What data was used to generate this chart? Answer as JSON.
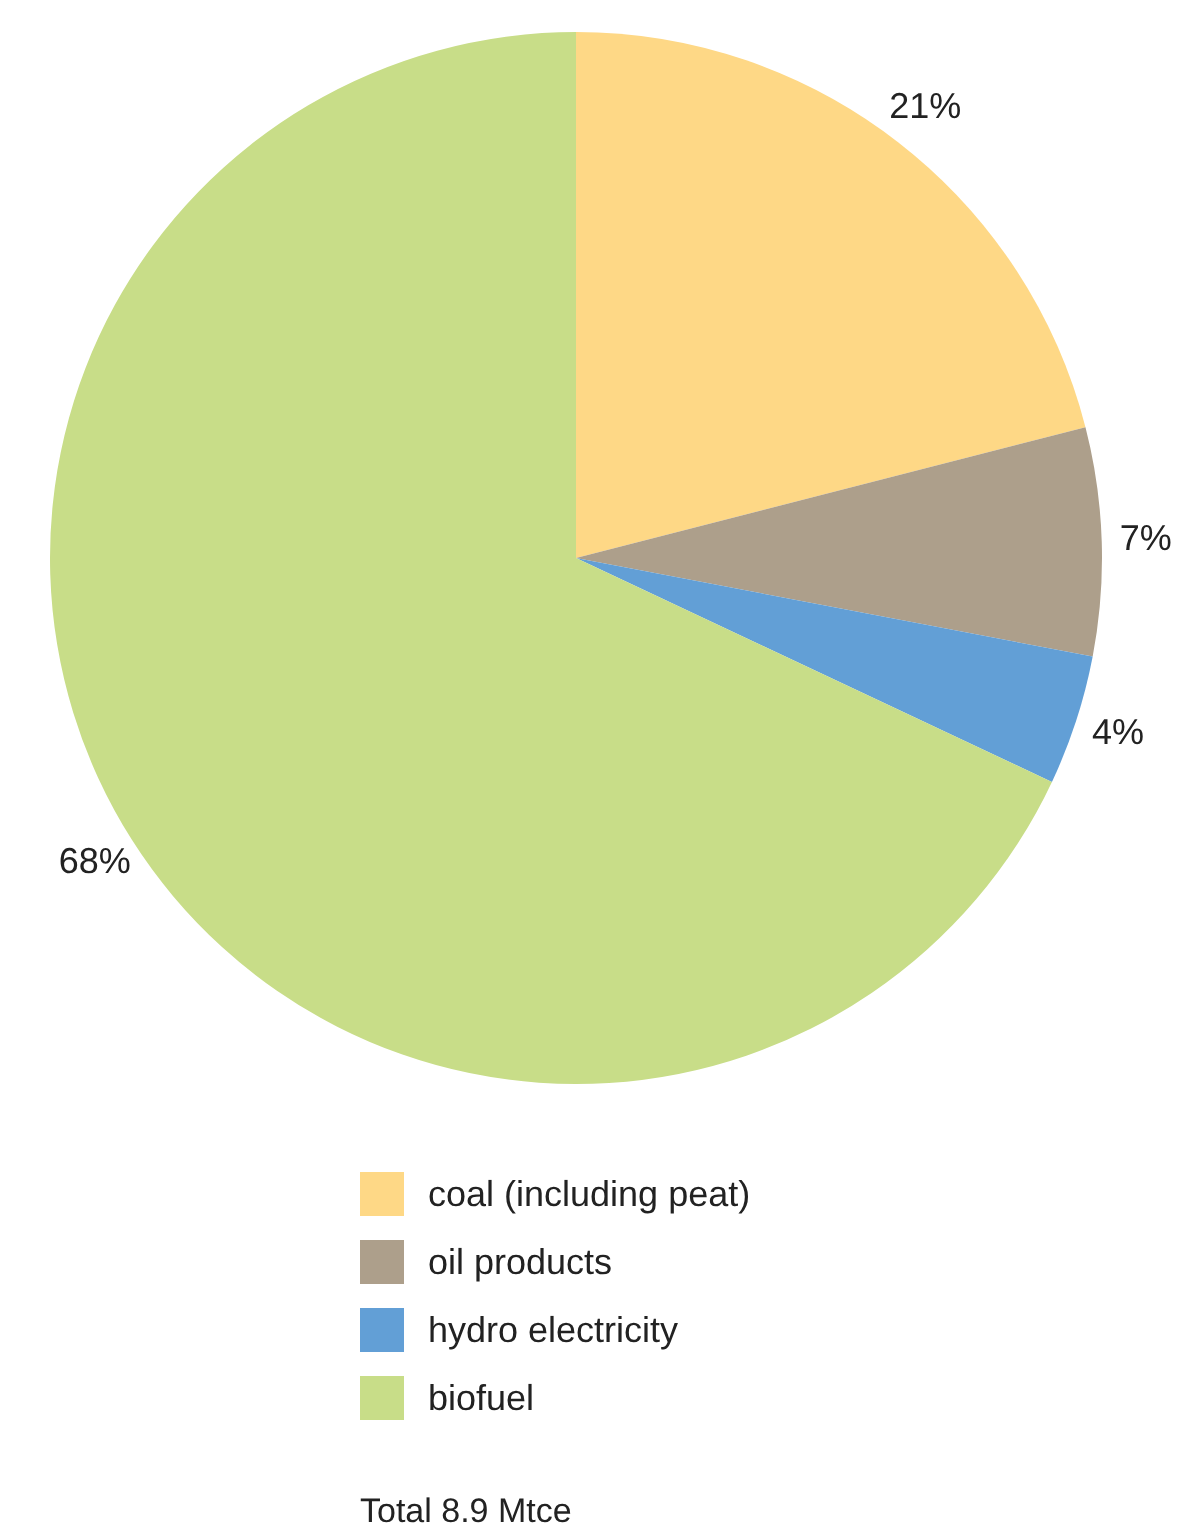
{
  "chart_data": {
    "type": "pie",
    "categories": [
      "coal (including peat)",
      "oil products",
      "hydro electricity",
      "biofuel"
    ],
    "values": [
      21,
      7,
      4,
      68
    ],
    "colors": [
      "#fed886",
      "#ad9f8b",
      "#629fd6",
      "#c8dd88"
    ],
    "value_labels": [
      "21%",
      "7%",
      "4%",
      "68%"
    ],
    "legend": "bottom",
    "annotations": [
      "Total 8.9 Mtce"
    ]
  }
}
